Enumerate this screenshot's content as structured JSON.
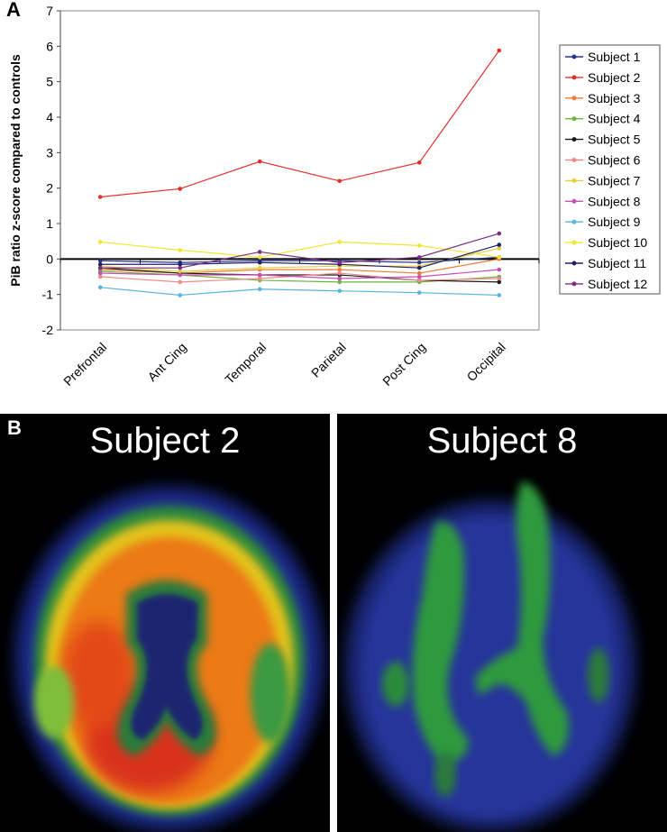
{
  "panel_a_label": "A",
  "panel_b_label": "B",
  "chart_data": {
    "type": "line",
    "ylabel": "PiB ratio z-score compared to controls",
    "ylim": [
      -2,
      7
    ],
    "yticks": [
      -2,
      -1,
      0,
      1,
      2,
      3,
      4,
      5,
      6,
      7
    ],
    "categories": [
      "Prefrontal",
      "Ant Cing",
      "Temporal",
      "Parietal",
      "Post Cing",
      "Occipital"
    ],
    "legend_position": "right",
    "series": [
      {
        "name": "Subject 1",
        "color": "#27348b",
        "values": [
          -0.05,
          -0.1,
          -0.05,
          -0.05,
          -0.1,
          0.05
        ]
      },
      {
        "name": "Subject 2",
        "color": "#e0302c",
        "values": [
          1.75,
          1.98,
          2.75,
          2.2,
          2.72,
          5.88
        ]
      },
      {
        "name": "Subject 3",
        "color": "#ee7a35",
        "values": [
          -0.3,
          -0.4,
          -0.3,
          -0.3,
          -0.4,
          0.0
        ]
      },
      {
        "name": "Subject 4",
        "color": "#6cb33f",
        "values": [
          -0.35,
          -0.45,
          -0.6,
          -0.65,
          -0.65,
          -0.5
        ]
      },
      {
        "name": "Subject 5",
        "color": "#1a1a1a",
        "values": [
          -0.25,
          -0.4,
          -0.45,
          -0.45,
          -0.6,
          -0.65
        ]
      },
      {
        "name": "Subject 6",
        "color": "#f08a8a",
        "values": [
          -0.5,
          -0.65,
          -0.55,
          -0.4,
          -0.6,
          -0.55
        ]
      },
      {
        "name": "Subject 7",
        "color": "#e3cf3a",
        "values": [
          -0.2,
          -0.35,
          -0.25,
          -0.2,
          -0.2,
          0.3
        ]
      },
      {
        "name": "Subject 8",
        "color": "#c54fb5",
        "values": [
          -0.4,
          -0.45,
          -0.45,
          -0.55,
          -0.5,
          -0.3
        ]
      },
      {
        "name": "Subject 9",
        "color": "#5ab3dc",
        "values": [
          -0.8,
          -1.02,
          -0.85,
          -0.9,
          -0.95,
          -1.02
        ]
      },
      {
        "name": "Subject 10",
        "color": "#f2e530",
        "values": [
          0.48,
          0.25,
          0.05,
          0.48,
          0.38,
          0.05
        ]
      },
      {
        "name": "Subject 11",
        "color": "#1f1f6b",
        "values": [
          -0.15,
          -0.15,
          -0.1,
          -0.15,
          -0.25,
          0.4
        ]
      },
      {
        "name": "Subject 12",
        "color": "#7b2d7f",
        "values": [
          -0.25,
          -0.25,
          0.2,
          -0.1,
          0.05,
          0.72
        ]
      }
    ]
  },
  "scans": [
    {
      "title": "Subject 2"
    },
    {
      "title": "Subject 8"
    }
  ]
}
